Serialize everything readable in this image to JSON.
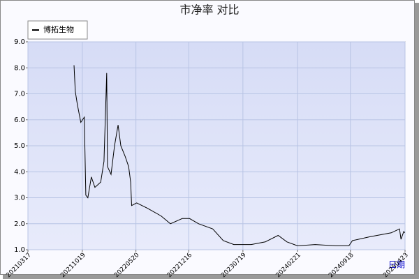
{
  "chart_data": {
    "type": "line",
    "title": "市净率  对比",
    "xlabel": "日期",
    "x": [
      "20210916",
      "20210921",
      "20210929",
      "20211013",
      "20211027",
      "20211102",
      "20211110",
      "20211124",
      "20211208",
      "20211231",
      "20220113",
      "20220124",
      "20220127",
      "20220210",
      "20220224",
      "20220310",
      "20220321",
      "20220407",
      "20220421",
      "20220429",
      "20220503",
      "20220523",
      "20220704",
      "20220828",
      "20221004",
      "20221120",
      "20221219",
      "20230124",
      "20230321",
      "20230502",
      "20230613",
      "20230821",
      "20231016",
      "20231206",
      "20240110",
      "20240221",
      "20240501",
      "20240722",
      "20240912",
      "20240926",
      "20241205",
      "20250227",
      "20250401",
      "20250407",
      "20250418",
      "20250422"
    ],
    "series": [
      {
        "name": "博拓生物",
        "color": "#000000",
        "values": [
          8.1,
          7.1,
          6.6,
          5.9,
          6.1,
          3.1,
          3.0,
          3.8,
          3.4,
          3.6,
          4.4,
          7.8,
          4.2,
          3.9,
          5.0,
          5.8,
          5.0,
          4.6,
          4.2,
          3.6,
          2.7,
          2.8,
          2.6,
          2.3,
          2.0,
          2.2,
          2.2,
          2.0,
          1.8,
          1.35,
          1.2,
          1.2,
          1.3,
          1.55,
          1.3,
          1.15,
          1.2,
          1.15,
          1.15,
          1.35,
          1.5,
          1.65,
          1.8,
          1.4,
          1.7,
          1.65
        ]
      }
    ],
    "xlim": [
      "20210317",
      "20250423"
    ],
    "xticks": [
      "20210317",
      "20211019",
      "20220520",
      "20221216",
      "20230719",
      "20240221",
      "20240918",
      "20250423"
    ],
    "ylim": [
      1,
      9
    ],
    "yticks": [
      {
        "value": 1,
        "label": "1.0"
      },
      {
        "value": 2,
        "label": "2.0"
      },
      {
        "value": 3,
        "label": "3.0"
      },
      {
        "value": 4,
        "label": "4.0"
      },
      {
        "value": 5,
        "label": "5.0"
      },
      {
        "value": 6,
        "label": "6.0"
      },
      {
        "value": 7,
        "label": "7.0"
      },
      {
        "value": 8,
        "label": "8.0"
      },
      {
        "value": 9,
        "label": "9.0"
      }
    ],
    "grid": true,
    "legend": "top-left"
  }
}
